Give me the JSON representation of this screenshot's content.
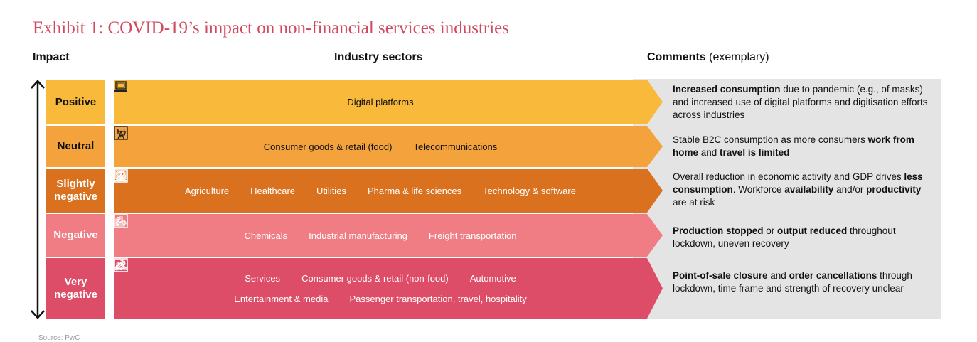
{
  "title": "Exhibit 1: COVID-19’s impact on non-financial services industries",
  "headers": {
    "impact": "Impact",
    "sectors": "Industry sectors",
    "comments_bold": "Comments",
    "comments_light": "(exemplary)"
  },
  "rows": [
    {
      "impact": "Positive",
      "color": "#f9b93a",
      "lines": [
        [
          {
            "label": "Digital platforms",
            "icon": "laptop-icon"
          }
        ]
      ],
      "comment": [
        {
          "t": "Increased consumption",
          "b": true
        },
        {
          "t": " due to pandemic (e.g., of masks) and increased use of digital platforms and digitisation efforts across industries",
          "b": false
        }
      ]
    },
    {
      "impact": "Neutral",
      "color": "#f4a23c",
      "lines": [
        [
          {
            "label": "Consumer goods & retail (food)",
            "icon": "shopping-cart-icon"
          },
          {
            "label": "Telecommunications",
            "icon": "antenna-icon"
          }
        ]
      ],
      "comment": [
        {
          "t": "Stable B2C consumption as more consumers ",
          "b": false
        },
        {
          "t": "work from home",
          "b": true
        },
        {
          "t": " and ",
          "b": false
        },
        {
          "t": "travel is limited",
          "b": true
        }
      ]
    },
    {
      "impact": "Slightly negative",
      "color": "#d9711f",
      "lines": [
        [
          {
            "label": "Agriculture",
            "icon": "barn-icon"
          },
          {
            "label": "Healthcare",
            "icon": "health-chart-icon"
          },
          {
            "label": "Utilities",
            "icon": "utility-tower-icon"
          },
          {
            "label": "Pharma & life sciences",
            "icon": "pill-icon"
          },
          {
            "label": "Technology & software",
            "icon": "monitor-icon"
          }
        ]
      ],
      "comment": [
        {
          "t": "Overall reduction in economic activity and GDP drives ",
          "b": false
        },
        {
          "t": "less consumption",
          "b": true
        },
        {
          "t": ". Workforce ",
          "b": false
        },
        {
          "t": "availability",
          "b": true
        },
        {
          "t": " and/or ",
          "b": false
        },
        {
          "t": "productivity",
          "b": true
        },
        {
          "t": " are at risk",
          "b": false
        }
      ]
    },
    {
      "impact": "Negative",
      "color": "#ef7d83",
      "lines": [
        [
          {
            "label": "Chemicals",
            "icon": "flask-icon"
          },
          {
            "label": "Industrial manufacturing",
            "icon": "factory-icon"
          },
          {
            "label": "Freight transportation",
            "icon": "truck-icon"
          }
        ]
      ],
      "comment": [
        {
          "t": "Production stopped",
          "b": true
        },
        {
          "t": " or ",
          "b": false
        },
        {
          "t": "output reduced",
          "b": true
        },
        {
          "t": " throughout lockdown, uneven recovery",
          "b": false
        }
      ]
    },
    {
      "impact": "Very negative",
      "color": "#de4d68",
      "lines": [
        [
          {
            "label": "Services",
            "icon": "people-icon"
          },
          {
            "label": "Consumer goods & retail (non-food)",
            "icon": "hanger-icon"
          },
          {
            "label": "Automotive",
            "icon": "car-icon"
          }
        ],
        [
          {
            "label": "Entertainment & media",
            "icon": "ticket-icon"
          },
          {
            "label": "Passenger transportation, travel, hospitality",
            "icon": "airplane-icon"
          }
        ]
      ],
      "comment": [
        {
          "t": "Point-of-sale closure",
          "b": true
        },
        {
          "t": " and ",
          "b": false
        },
        {
          "t": "order cancellations",
          "b": true
        },
        {
          "t": " through lockdown, time frame and strength of recovery unclear",
          "b": false
        }
      ]
    }
  ],
  "source": "Source: PwC"
}
